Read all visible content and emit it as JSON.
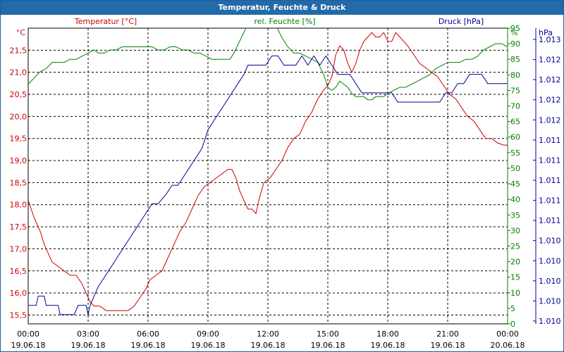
{
  "window": {
    "title": "Temperatur, Feuchte & Druck"
  },
  "chart_data": {
    "type": "line",
    "title": "Temperatur, Feuchte & Druck",
    "grid": true,
    "x_ticks": [
      {
        "time": "00:00",
        "date": "19.06.18"
      },
      {
        "time": "03:00",
        "date": "19.06.18"
      },
      {
        "time": "06:00",
        "date": "19.06.18"
      },
      {
        "time": "09:00",
        "date": "19.06.18"
      },
      {
        "time": "12:00",
        "date": "19.06.18"
      },
      {
        "time": "15:00",
        "date": "19.06.18"
      },
      {
        "time": "18:00",
        "date": "19.06.18"
      },
      {
        "time": "21:00",
        "date": "19.06.18"
      },
      {
        "time": "00:00",
        "date": "20.06.18"
      }
    ],
    "xlim_hours": [
      0,
      24
    ],
    "axes": {
      "temp": {
        "header": "Temperatur [°C]",
        "unit": "°C",
        "color": "#cc0000",
        "ylim": [
          15.3,
          22.0
        ],
        "ticks": [
          "15,5",
          "16,0",
          "16,5",
          "17,0",
          "17,5",
          "18,0",
          "18,5",
          "19,0",
          "19,5",
          "20,0",
          "20,5",
          "21,0",
          "21,5"
        ]
      },
      "hum": {
        "header": "rel. Feuchte [%]",
        "unit": "%",
        "color": "#008000",
        "ylim": [
          0,
          95
        ],
        "ticks": [
          "0",
          "5",
          "10",
          "15",
          "20",
          "25",
          "30",
          "35",
          "40",
          "45",
          "50",
          "55",
          "60",
          "65",
          "70",
          "75",
          "80",
          "85",
          "90",
          "95"
        ]
      },
      "press": {
        "header": "Druck [hPa]",
        "unit": "hPa",
        "color": "#000099",
        "ylim": [
          1.0099,
          1.0131
        ],
        "ticks": [
          "1.010",
          "1.010",
          "1.010",
          "1.010",
          "1.010",
          "1.011",
          "1.011",
          "1.011",
          "1.011",
          "1.011",
          "1.012",
          "1.012",
          "1.012",
          "1.012",
          "1.013"
        ]
      }
    },
    "series": [
      {
        "key": "temp",
        "color": "#cc0000",
        "points": [
          [
            0,
            18.1
          ],
          [
            0.3,
            17.7
          ],
          [
            0.6,
            17.4
          ],
          [
            0.8,
            17.1
          ],
          [
            1.0,
            16.9
          ],
          [
            1.2,
            16.7
          ],
          [
            1.5,
            16.6
          ],
          [
            1.8,
            16.5
          ],
          [
            2.1,
            16.4
          ],
          [
            2.4,
            16.4
          ],
          [
            2.7,
            16.2
          ],
          [
            2.9,
            16.0
          ],
          [
            3.1,
            15.8
          ],
          [
            3.3,
            15.7
          ],
          [
            3.6,
            15.7
          ],
          [
            3.9,
            15.6
          ],
          [
            4.2,
            15.6
          ],
          [
            4.5,
            15.6
          ],
          [
            4.8,
            15.6
          ],
          [
            5.0,
            15.6
          ],
          [
            5.3,
            15.7
          ],
          [
            5.6,
            15.9
          ],
          [
            5.9,
            16.1
          ],
          [
            6.1,
            16.3
          ],
          [
            6.4,
            16.4
          ],
          [
            6.7,
            16.5
          ],
          [
            7.0,
            16.8
          ],
          [
            7.3,
            17.1
          ],
          [
            7.6,
            17.4
          ],
          [
            7.9,
            17.6
          ],
          [
            8.2,
            17.9
          ],
          [
            8.5,
            18.2
          ],
          [
            8.8,
            18.4
          ],
          [
            9.1,
            18.5
          ],
          [
            9.4,
            18.6
          ],
          [
            9.7,
            18.7
          ],
          [
            10.0,
            18.8
          ],
          [
            10.2,
            18.8
          ],
          [
            10.4,
            18.6
          ],
          [
            10.6,
            18.3
          ],
          [
            10.8,
            18.1
          ],
          [
            11.0,
            17.9
          ],
          [
            11.2,
            17.9
          ],
          [
            11.4,
            17.8
          ],
          [
            11.6,
            18.2
          ],
          [
            11.8,
            18.5
          ],
          [
            12.1,
            18.6
          ],
          [
            12.4,
            18.8
          ],
          [
            12.7,
            19.0
          ],
          [
            13.0,
            19.3
          ],
          [
            13.3,
            19.5
          ],
          [
            13.6,
            19.6
          ],
          [
            13.9,
            19.9
          ],
          [
            14.2,
            20.1
          ],
          [
            14.5,
            20.4
          ],
          [
            14.8,
            20.6
          ],
          [
            15.0,
            20.7
          ],
          [
            15.2,
            20.9
          ],
          [
            15.4,
            21.4
          ],
          [
            15.6,
            21.6
          ],
          [
            15.8,
            21.5
          ],
          [
            16.0,
            21.2
          ],
          [
            16.2,
            21.0
          ],
          [
            16.4,
            21.2
          ],
          [
            16.6,
            21.5
          ],
          [
            16.8,
            21.7
          ],
          [
            17.0,
            21.8
          ],
          [
            17.2,
            21.9
          ],
          [
            17.4,
            21.8
          ],
          [
            17.6,
            21.8
          ],
          [
            17.8,
            21.9
          ],
          [
            18.0,
            21.7
          ],
          [
            18.2,
            21.7
          ],
          [
            18.4,
            21.9
          ],
          [
            18.6,
            21.8
          ],
          [
            18.8,
            21.7
          ],
          [
            19.0,
            21.6
          ],
          [
            19.3,
            21.4
          ],
          [
            19.6,
            21.2
          ],
          [
            19.9,
            21.1
          ],
          [
            20.2,
            21.0
          ],
          [
            20.5,
            20.9
          ],
          [
            20.8,
            20.7
          ],
          [
            21.1,
            20.5
          ],
          [
            21.4,
            20.4
          ],
          [
            21.7,
            20.2
          ],
          [
            22.0,
            20.0
          ],
          [
            22.3,
            19.9
          ],
          [
            22.6,
            19.7
          ],
          [
            22.9,
            19.5
          ],
          [
            23.2,
            19.5
          ],
          [
            23.5,
            19.4
          ],
          [
            23.8,
            19.35
          ],
          [
            24.0,
            19.35
          ]
        ]
      },
      {
        "key": "hum",
        "color": "#008000",
        "points": [
          [
            0,
            77
          ],
          [
            0.3,
            79
          ],
          [
            0.6,
            81
          ],
          [
            0.9,
            82
          ],
          [
            1.2,
            84
          ],
          [
            1.5,
            84
          ],
          [
            1.8,
            84
          ],
          [
            2.1,
            85
          ],
          [
            2.4,
            85
          ],
          [
            2.7,
            86
          ],
          [
            3.0,
            87
          ],
          [
            3.3,
            88
          ],
          [
            3.5,
            87
          ],
          [
            3.8,
            87
          ],
          [
            4.1,
            88
          ],
          [
            4.4,
            88
          ],
          [
            4.7,
            89
          ],
          [
            5.0,
            89
          ],
          [
            5.3,
            89
          ],
          [
            5.6,
            89
          ],
          [
            5.9,
            89
          ],
          [
            6.2,
            89
          ],
          [
            6.5,
            88
          ],
          [
            6.8,
            88
          ],
          [
            7.1,
            89
          ],
          [
            7.4,
            89
          ],
          [
            7.7,
            88
          ],
          [
            8.0,
            88
          ],
          [
            8.3,
            87
          ],
          [
            8.6,
            87
          ],
          [
            8.9,
            86
          ],
          [
            9.2,
            85
          ],
          [
            9.5,
            85
          ],
          [
            9.8,
            85
          ],
          [
            10.1,
            85
          ],
          [
            10.3,
            87
          ],
          [
            10.6,
            91
          ],
          [
            10.9,
            95
          ],
          [
            11.2,
            98
          ],
          [
            11.5,
            100
          ],
          [
            11.8,
            100
          ],
          [
            12.1,
            99
          ],
          [
            12.4,
            96
          ],
          [
            12.7,
            92
          ],
          [
            13.0,
            89
          ],
          [
            13.3,
            87
          ],
          [
            13.6,
            87
          ],
          [
            13.9,
            86
          ],
          [
            14.2,
            85
          ],
          [
            14.5,
            84
          ],
          [
            14.8,
            80
          ],
          [
            15.0,
            76
          ],
          [
            15.2,
            75
          ],
          [
            15.4,
            76
          ],
          [
            15.6,
            78
          ],
          [
            15.8,
            77
          ],
          [
            16.0,
            76
          ],
          [
            16.2,
            74
          ],
          [
            16.4,
            73
          ],
          [
            16.6,
            73
          ],
          [
            16.8,
            73
          ],
          [
            17.0,
            72
          ],
          [
            17.2,
            72
          ],
          [
            17.4,
            73
          ],
          [
            17.6,
            73
          ],
          [
            17.8,
            73
          ],
          [
            18.0,
            74
          ],
          [
            18.3,
            75
          ],
          [
            18.6,
            76
          ],
          [
            18.9,
            76
          ],
          [
            19.2,
            77
          ],
          [
            19.5,
            78
          ],
          [
            19.8,
            79
          ],
          [
            20.1,
            80
          ],
          [
            20.4,
            82
          ],
          [
            20.7,
            83
          ],
          [
            21.0,
            84
          ],
          [
            21.3,
            84
          ],
          [
            21.6,
            84
          ],
          [
            21.9,
            85
          ],
          [
            22.2,
            85
          ],
          [
            22.5,
            86
          ],
          [
            22.8,
            88
          ],
          [
            23.1,
            89
          ],
          [
            23.4,
            90
          ],
          [
            23.7,
            90
          ],
          [
            24.0,
            89
          ]
        ]
      },
      {
        "key": "press",
        "color": "#000099",
        "points": [
          [
            0,
            1.0101
          ],
          [
            0.4,
            1.0101
          ],
          [
            0.5,
            1.0102
          ],
          [
            0.8,
            1.0102
          ],
          [
            0.9,
            1.0101
          ],
          [
            1.5,
            1.0101
          ],
          [
            1.6,
            1.01
          ],
          [
            1.9,
            1.01
          ],
          [
            2.0,
            1.01
          ],
          [
            2.3,
            1.01
          ],
          [
            2.5,
            1.0101
          ],
          [
            2.9,
            1.0101
          ],
          [
            3.0,
            1.01
          ],
          [
            3.1,
            1.0101
          ],
          [
            3.3,
            1.0102
          ],
          [
            3.5,
            1.0103
          ],
          [
            3.8,
            1.0104
          ],
          [
            4.1,
            1.0105
          ],
          [
            4.4,
            1.0106
          ],
          [
            4.7,
            1.0107
          ],
          [
            5.0,
            1.0108
          ],
          [
            5.3,
            1.0109
          ],
          [
            5.6,
            1.011
          ],
          [
            5.9,
            1.0111
          ],
          [
            6.2,
            1.0112
          ],
          [
            6.5,
            1.0112
          ],
          [
            6.9,
            1.0113
          ],
          [
            7.2,
            1.0114
          ],
          [
            7.5,
            1.0114
          ],
          [
            7.8,
            1.0115
          ],
          [
            8.1,
            1.0116
          ],
          [
            8.4,
            1.0117
          ],
          [
            8.7,
            1.0118
          ],
          [
            9.0,
            1.012
          ],
          [
            9.3,
            1.0121
          ],
          [
            9.6,
            1.0122
          ],
          [
            9.9,
            1.0123
          ],
          [
            10.2,
            1.0124
          ],
          [
            10.5,
            1.0125
          ],
          [
            10.8,
            1.0126
          ],
          [
            11.0,
            1.0127
          ],
          [
            11.3,
            1.0127
          ],
          [
            11.6,
            1.0127
          ],
          [
            11.9,
            1.0127
          ],
          [
            12.2,
            1.0128
          ],
          [
            12.5,
            1.0128
          ],
          [
            12.8,
            1.0127
          ],
          [
            13.1,
            1.0127
          ],
          [
            13.4,
            1.0127
          ],
          [
            13.7,
            1.0128
          ],
          [
            14.0,
            1.0127
          ],
          [
            14.3,
            1.0128
          ],
          [
            14.6,
            1.0127
          ],
          [
            14.9,
            1.0128
          ],
          [
            15.2,
            1.0127
          ],
          [
            15.5,
            1.0126
          ],
          [
            15.8,
            1.0126
          ],
          [
            16.1,
            1.0126
          ],
          [
            16.4,
            1.0125
          ],
          [
            16.7,
            1.0124
          ],
          [
            17.0,
            1.0124
          ],
          [
            17.3,
            1.0124
          ],
          [
            17.6,
            1.0124
          ],
          [
            17.9,
            1.0124
          ],
          [
            18.2,
            1.0124
          ],
          [
            18.5,
            1.0123
          ],
          [
            18.8,
            1.0123
          ],
          [
            19.1,
            1.0123
          ],
          [
            19.4,
            1.0123
          ],
          [
            19.7,
            1.0123
          ],
          [
            20.0,
            1.0123
          ],
          [
            20.3,
            1.0123
          ],
          [
            20.6,
            1.0123
          ],
          [
            20.9,
            1.0124
          ],
          [
            21.2,
            1.0124
          ],
          [
            21.5,
            1.0125
          ],
          [
            21.8,
            1.0125
          ],
          [
            22.1,
            1.0126
          ],
          [
            22.4,
            1.0126
          ],
          [
            22.7,
            1.0126
          ],
          [
            23.0,
            1.0125
          ],
          [
            23.3,
            1.0125
          ],
          [
            23.6,
            1.0125
          ],
          [
            24.0,
            1.0125
          ]
        ]
      }
    ]
  }
}
